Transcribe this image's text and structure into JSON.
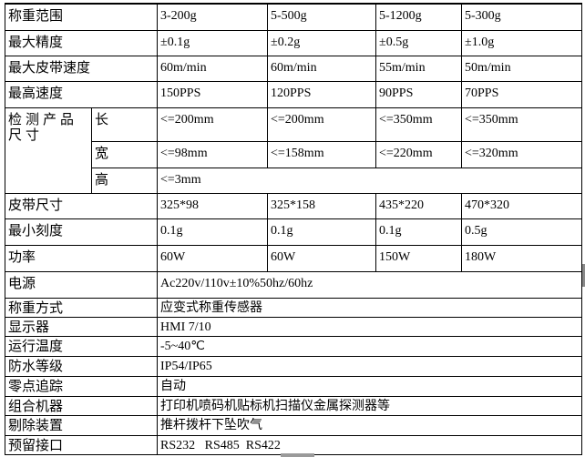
{
  "rows": [
    {
      "label": "称重范围",
      "values": [
        "3-200g",
        "5-500g",
        "5-1200g",
        "5-300g"
      ]
    },
    {
      "label": "最大精度",
      "values": [
        "±0.1g",
        "±0.2g",
        "±0.5g",
        "±1.0g"
      ]
    },
    {
      "label": "最大皮带速度",
      "values": [
        "60m/min",
        "60m/min",
        "55m/min",
        "50m/min"
      ]
    },
    {
      "label": "最高速度",
      "values": [
        "150PPS",
        "120PPS",
        "90PPS",
        "70PPS"
      ]
    }
  ],
  "product_size": {
    "label": "检测产品尺寸",
    "length": {
      "label": "长",
      "values": [
        "<=200mm",
        "<=200mm",
        "<=350mm",
        "<=350mm"
      ]
    },
    "width": {
      "label": "宽",
      "values": [
        "<=98mm",
        "<=158mm",
        "<=220mm",
        "<=320mm"
      ]
    },
    "height": {
      "label": "高",
      "value": "<=3mm"
    }
  },
  "rows2": [
    {
      "label": "皮带尺寸",
      "values": [
        "325*98",
        "325*158",
        "435*220",
        "470*320"
      ]
    },
    {
      "label": "最小刻度",
      "values": [
        "0.1g",
        "0.1g",
        "0.1g",
        "0.5g"
      ]
    },
    {
      "label": "功率",
      "values": [
        "60W",
        "60W",
        "150W",
        "180W"
      ]
    }
  ],
  "single_rows": [
    {
      "label": "电源",
      "value": "Ac220v/110v±10%50hz/60hz"
    },
    {
      "label": "称重方式",
      "value": "应变式称重传感器"
    },
    {
      "label": "显示器",
      "value": "HMI 7/10"
    },
    {
      "label": "运行温度",
      "value": "-5~40℃"
    },
    {
      "label": "防水等级",
      "value": "IP54/IP65"
    },
    {
      "label": "零点追踪",
      "value": "自动"
    },
    {
      "label": "组合机器",
      "value": "打印机喷码机贴标机扫描仪金属探测器等"
    },
    {
      "label": "剔除装置",
      "value": "推杆拨杆下坠吹气"
    },
    {
      "label": "预留接口",
      "value": "RS232   RS485  RS422"
    }
  ]
}
